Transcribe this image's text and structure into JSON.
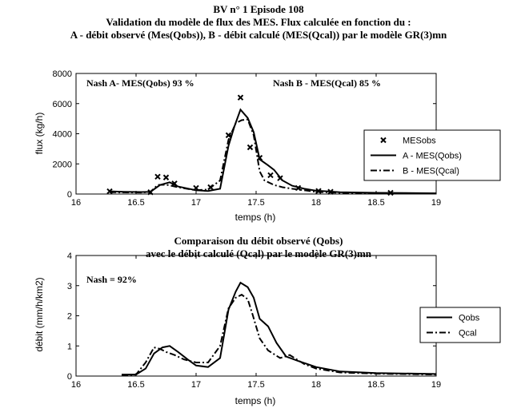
{
  "header": {
    "line1": "BV n° 1  Episode 108",
    "line2": "Validation du modèle de flux des MES. Flux calculée en fonction du :",
    "line3": "A - débit observé (Mes(Qobs)), B - débit calculé (MES(Qcal)) par le modèle GR(3)mn"
  },
  "chart_data": [
    {
      "type": "line",
      "title": "",
      "xlabel": "temps (h)",
      "ylabel": "flux (kg/h)",
      "xlim": [
        16,
        19
      ],
      "ylim": [
        0,
        8000
      ],
      "xticks": [
        "16",
        "16.5",
        "17",
        "17.5",
        "18",
        "18.5",
        "19"
      ],
      "yticks": [
        "0",
        "2000",
        "4000",
        "6000",
        "8000"
      ],
      "annotations": [
        "Nash A- MES(Qobs) 93 %",
        "Nash B - MES(Qcal) 85 %"
      ],
      "legend_position": "right",
      "series": [
        {
          "name": "MESobs",
          "style": "markers",
          "x": [
            16.28,
            16.62,
            16.68,
            16.75,
            16.82,
            17.0,
            17.12,
            17.27,
            17.37,
            17.45,
            17.53,
            17.62,
            17.7,
            17.85,
            18.02,
            18.12,
            18.62
          ],
          "y": [
            180,
            120,
            1150,
            1100,
            700,
            400,
            450,
            3900,
            6400,
            3100,
            2400,
            1250,
            1050,
            400,
            200,
            150,
            80
          ]
        },
        {
          "name": "A - MES(Qobs)",
          "style": "solid",
          "x": [
            16.28,
            16.4,
            16.55,
            16.62,
            16.7,
            16.78,
            16.85,
            17.0,
            17.1,
            17.2,
            17.27,
            17.32,
            17.37,
            17.43,
            17.48,
            17.53,
            17.6,
            17.65,
            17.72,
            17.8,
            17.9,
            18.0,
            18.2,
            18.5,
            19.0
          ],
          "y": [
            180,
            150,
            130,
            150,
            600,
            780,
            500,
            250,
            200,
            350,
            3200,
            4500,
            5600,
            5050,
            4100,
            2300,
            1900,
            1600,
            900,
            550,
            350,
            220,
            120,
            80,
            50
          ]
        },
        {
          "name": "B - MES(Qcal)",
          "style": "dashdot",
          "x": [
            16.28,
            16.4,
            16.55,
            16.62,
            16.68,
            16.75,
            16.85,
            17.0,
            17.1,
            17.2,
            17.27,
            17.33,
            17.38,
            17.43,
            17.48,
            17.53,
            17.57,
            17.65,
            17.72,
            17.8,
            17.9,
            18.0,
            18.2,
            18.5,
            19.0
          ],
          "y": [
            120,
            110,
            100,
            150,
            600,
            620,
            450,
            250,
            300,
            900,
            3600,
            4700,
            4900,
            4950,
            3900,
            1500,
            900,
            600,
            450,
            350,
            250,
            150,
            80,
            50,
            30
          ]
        }
      ]
    },
    {
      "type": "line",
      "title": "Comparaison du débit observé (Qobs)",
      "subtitle": "avec le débit calculé (Qcal) par le modèle GR(3)mn",
      "xlabel": "temps (h)",
      "ylabel": "débit (mm/h/km2)",
      "xlim": [
        16,
        19
      ],
      "ylim": [
        0,
        4
      ],
      "xticks": [
        "16",
        "16.5",
        "17",
        "17.5",
        "18",
        "18.5",
        "19"
      ],
      "yticks": [
        "0",
        "1",
        "2",
        "3",
        "4"
      ],
      "annotations": [
        "Nash =  92%"
      ],
      "legend_position": "right",
      "series": [
        {
          "name": "Qobs",
          "style": "solid",
          "x": [
            16.38,
            16.5,
            16.58,
            16.65,
            16.72,
            16.78,
            16.85,
            16.93,
            17.0,
            17.1,
            17.2,
            17.27,
            17.33,
            17.37,
            17.43,
            17.48,
            17.53,
            17.6,
            17.67,
            17.75,
            17.85,
            18.0,
            18.2,
            18.5,
            19.0
          ],
          "y": [
            0.05,
            0.05,
            0.25,
            0.75,
            0.95,
            1.0,
            0.8,
            0.55,
            0.35,
            0.3,
            0.6,
            2.2,
            2.8,
            3.1,
            2.95,
            2.6,
            1.9,
            1.65,
            1.1,
            0.65,
            0.5,
            0.3,
            0.15,
            0.1,
            0.07
          ]
        },
        {
          "name": "Qcal",
          "style": "dashdot",
          "x": [
            16.38,
            16.5,
            16.58,
            16.65,
            16.7,
            16.75,
            16.82,
            16.9,
            17.0,
            17.1,
            17.2,
            17.27,
            17.33,
            17.38,
            17.43,
            17.47,
            17.53,
            17.6,
            17.7,
            17.78,
            17.9,
            18.0,
            18.2,
            18.5,
            19.0
          ],
          "y": [
            0.02,
            0.05,
            0.45,
            0.95,
            0.9,
            0.8,
            0.7,
            0.55,
            0.45,
            0.45,
            1.0,
            2.25,
            2.6,
            2.7,
            2.55,
            2.05,
            1.25,
            0.85,
            0.6,
            0.7,
            0.4,
            0.25,
            0.12,
            0.08,
            0.05
          ]
        }
      ]
    }
  ]
}
